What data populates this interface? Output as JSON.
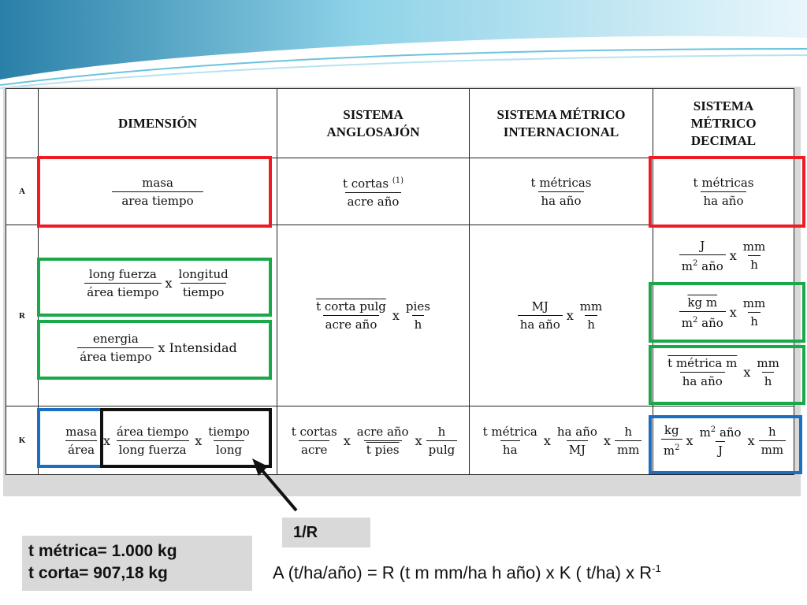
{
  "table": {
    "headers": [
      "",
      "DIMENSIÓN",
      "SISTEMA ANGLOSAJÓN",
      "SISTEMA MÉTRICO INTERNACIONAL",
      "SISTEMA MÉTRICO DECIMAL"
    ],
    "rows": {
      "A": {
        "label": "A",
        "dim": {
          "num": "masa",
          "den": "area tiempo"
        },
        "anglo": {
          "num": "t cortas",
          "sup": "(1)",
          "den": "acre año"
        },
        "intl": {
          "num": "t métricas",
          "den": "ha año"
        },
        "dec": {
          "num": "t métricas",
          "den": "ha año"
        }
      },
      "R": {
        "label": "R",
        "dim1": {
          "f1_num": "long fuerza",
          "f1_den": "área tiempo",
          "op": "x",
          "f2_num": "longitud",
          "f2_den": "tiempo"
        },
        "dim2": {
          "num": "energia",
          "den": "área tiempo",
          "tail": "x Intensidad"
        },
        "anglo": {
          "f1_num": "t corta pulg",
          "f1_den": "acre año",
          "op": "x",
          "f2_num": "pies",
          "f2_den": "h"
        },
        "intl": {
          "f1_num": "MJ",
          "f1_den": "ha año",
          "op": "x",
          "f2_num": "mm",
          "f2_den": "h"
        },
        "dec1": {
          "f1_num": "J",
          "f1_den_a": "m",
          "f1_den_sup": "2",
          "f1_den_b": " año",
          "op": "x",
          "f2_num": "mm",
          "f2_den": "h"
        },
        "dec2": {
          "f1_num": "kg m",
          "f1_den_a": "m",
          "f1_den_sup": "2",
          "f1_den_b": " año",
          "op": "x",
          "f2_num": "mm",
          "f2_den": "h"
        },
        "dec3": {
          "f1_num": "t métrica m",
          "f1_den": "ha año",
          "op": "x",
          "f2_num": "mm",
          "f2_den": "h"
        }
      },
      "K": {
        "label": "K",
        "dim": {
          "f1_num": "masa",
          "f1_den": "área",
          "op1": "x",
          "f2_num": "área tiempo",
          "f2_den": "long fuerza",
          "op2": "x",
          "f3_num": "tiempo",
          "f3_den": "long"
        },
        "anglo": {
          "f1_num": "t cortas",
          "f1_den": "acre",
          "op1": "x",
          "f2_num": "acre año",
          "f2_den": "t pies",
          "op2": "x",
          "f3_num": "h",
          "f3_den": "pulg"
        },
        "intl": {
          "f1_num": "t métrica",
          "f1_den": "ha",
          "op1": "x",
          "f2_num": "ha año",
          "f2_den": "MJ",
          "op2": "x",
          "f3_num": "h",
          "f3_den": "mm"
        },
        "dec": {
          "f1_num": "kg",
          "f1_den_a": "m",
          "f1_den_sup": "2",
          "op1": "x",
          "f2_num_a": "m",
          "f2_num_sup": "2",
          "f2_num_b": " año",
          "f2_den": "J",
          "op2": "x",
          "f3_num": "h",
          "f3_den": "mm"
        }
      }
    }
  },
  "inverse_label": "1/R",
  "equivalences": {
    "line1": "t métrica= 1.000 kg",
    "line2": "t corta= 907,18 kg"
  },
  "formula": {
    "text": "A (t/ha/año) = R (t m mm/ha h año)   x   K ( t/ha) x R",
    "sup": "-1"
  },
  "colors": {
    "red": "#ee1c24",
    "green": "#1aa84a",
    "blue": "#1b6fc2",
    "black": "#111111",
    "grey": "#d9d9d9"
  }
}
